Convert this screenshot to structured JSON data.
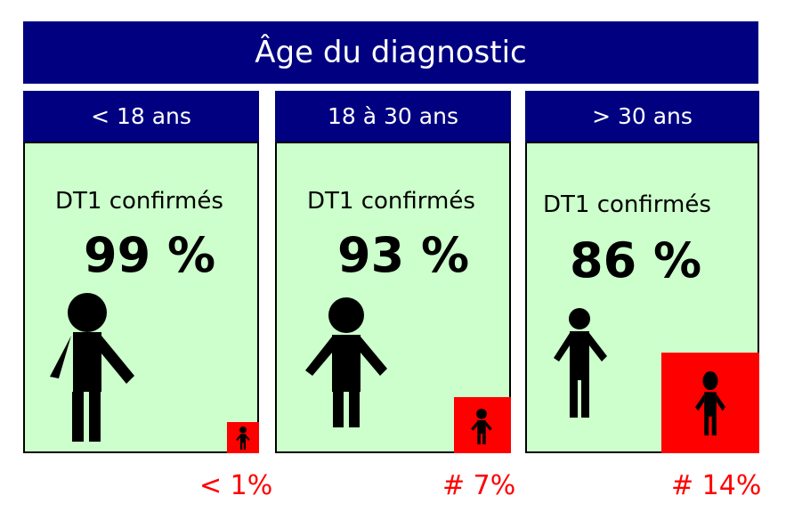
{
  "title": "Âge du diagnostic",
  "groups": [
    {
      "label": "< 18 ans",
      "caption": "DT1 confirmés",
      "value": "99 %",
      "minority": "< 1%"
    },
    {
      "label": "18 à 30 ans",
      "caption": "DT1 confirmés",
      "value": "93 %",
      "minority": "# 7%"
    },
    {
      "label": "> 30 ans",
      "caption": "DT1 confirmés",
      "value": "86 %",
      "minority": "# 14%"
    }
  ],
  "colors": {
    "header": "#000080",
    "panel": "#ccffcc",
    "minority": "#ff0000"
  },
  "icons": {
    "person": "person-icon"
  }
}
